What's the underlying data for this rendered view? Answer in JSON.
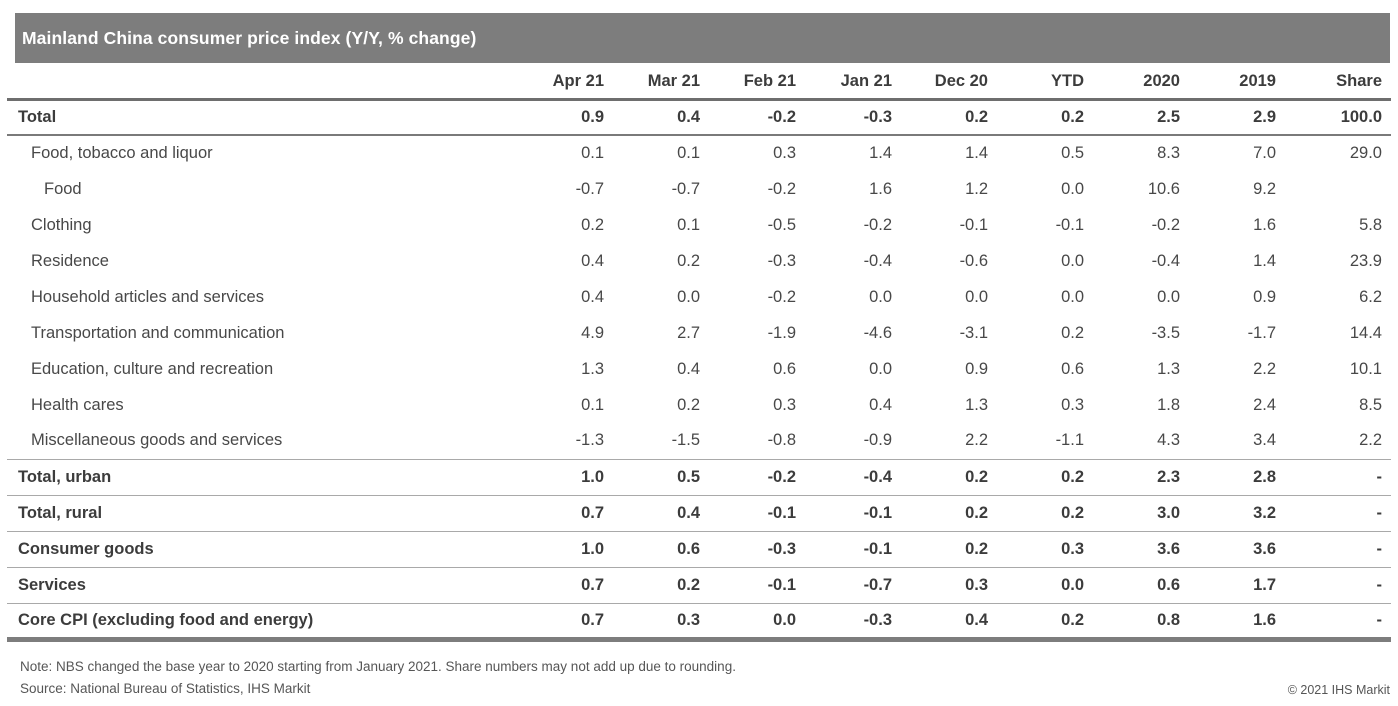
{
  "title": "Mainland China consumer price index (Y/Y, % change)",
  "colors": {
    "title_bar_bg": "#7d7d7d",
    "title_text": "#ffffff",
    "header_text": "#3c3c3c",
    "body_text": "#484848",
    "thin_rule": "#a9a9a9",
    "header_rule": "#6e6e6e",
    "bottom_rule": "#7d7d7d"
  },
  "footer": {
    "note": "Note: NBS changed the base year to 2020 starting from January 2021. Share numbers may not add up due to rounding.",
    "source": "Source: National Bureau of Statistics, IHS Markit",
    "copyright": "© 2021 IHS Markit"
  },
  "chart_data": {
    "type": "table",
    "title": "Mainland China consumer price index (Y/Y, % change)",
    "columns": [
      "Apr 21",
      "Mar 21",
      "Feb 21",
      "Jan 21",
      "Dec 20",
      "YTD",
      "2020",
      "2019",
      "Share"
    ],
    "rows": [
      {
        "label": "Total",
        "indent": 0,
        "bold": true,
        "rule_below": "medium",
        "values": [
          "0.9",
          "0.4",
          "-0.2",
          "-0.3",
          "0.2",
          "0.2",
          "2.5",
          "2.9",
          "100.0"
        ]
      },
      {
        "label": "Food, tobacco and liquor",
        "indent": 1,
        "bold": false,
        "rule_below": null,
        "values": [
          "0.1",
          "0.1",
          "0.3",
          "1.4",
          "1.4",
          "0.5",
          "8.3",
          "7.0",
          "29.0"
        ]
      },
      {
        "label": "Food",
        "indent": 2,
        "bold": false,
        "rule_below": null,
        "values": [
          "-0.7",
          "-0.7",
          "-0.2",
          "1.6",
          "1.2",
          "0.0",
          "10.6",
          "9.2",
          ""
        ]
      },
      {
        "label": "Clothing",
        "indent": 1,
        "bold": false,
        "rule_below": null,
        "values": [
          "0.2",
          "0.1",
          "-0.5",
          "-0.2",
          "-0.1",
          "-0.1",
          "-0.2",
          "1.6",
          "5.8"
        ]
      },
      {
        "label": "Residence",
        "indent": 1,
        "bold": false,
        "rule_below": null,
        "values": [
          "0.4",
          "0.2",
          "-0.3",
          "-0.4",
          "-0.6",
          "0.0",
          "-0.4",
          "1.4",
          "23.9"
        ]
      },
      {
        "label": "Household articles and services",
        "indent": 1,
        "bold": false,
        "rule_below": null,
        "values": [
          "0.4",
          "0.0",
          "-0.2",
          "0.0",
          "0.0",
          "0.0",
          "0.0",
          "0.9",
          "6.2"
        ]
      },
      {
        "label": "Transportation and communication",
        "indent": 1,
        "bold": false,
        "rule_below": null,
        "values": [
          "4.9",
          "2.7",
          "-1.9",
          "-4.6",
          "-3.1",
          "0.2",
          "-3.5",
          "-1.7",
          "14.4"
        ]
      },
      {
        "label": "Education, culture and recreation",
        "indent": 1,
        "bold": false,
        "rule_below": null,
        "values": [
          "1.3",
          "0.4",
          "0.6",
          "0.0",
          "0.9",
          "0.6",
          "1.3",
          "2.2",
          "10.1"
        ]
      },
      {
        "label": "Health cares",
        "indent": 1,
        "bold": false,
        "rule_below": null,
        "values": [
          "0.1",
          "0.2",
          "0.3",
          "0.4",
          "1.3",
          "0.3",
          "1.8",
          "2.4",
          "8.5"
        ]
      },
      {
        "label": "Miscellaneous goods and services",
        "indent": 1,
        "bold": false,
        "rule_below": "thin",
        "values": [
          "-1.3",
          "-1.5",
          "-0.8",
          "-0.9",
          "2.2",
          "-1.1",
          "4.3",
          "3.4",
          "2.2"
        ]
      },
      {
        "label": "Total, urban",
        "indent": 0,
        "bold": true,
        "rule_below": "thin",
        "values": [
          "1.0",
          "0.5",
          "-0.2",
          "-0.4",
          "0.2",
          "0.2",
          "2.3",
          "2.8",
          "-"
        ]
      },
      {
        "label": "Total, rural",
        "indent": 0,
        "bold": true,
        "rule_below": "thin",
        "values": [
          "0.7",
          "0.4",
          "-0.1",
          "-0.1",
          "0.2",
          "0.2",
          "3.0",
          "3.2",
          "-"
        ]
      },
      {
        "label": "Consumer goods",
        "indent": 0,
        "bold": true,
        "rule_below": "thin",
        "values": [
          "1.0",
          "0.6",
          "-0.3",
          "-0.1",
          "0.2",
          "0.3",
          "3.6",
          "3.6",
          "-"
        ]
      },
      {
        "label": "Services",
        "indent": 0,
        "bold": true,
        "rule_below": "thin",
        "values": [
          "0.7",
          "0.2",
          "-0.1",
          "-0.7",
          "0.3",
          "0.0",
          "0.6",
          "1.7",
          "-"
        ]
      },
      {
        "label": "Core CPI (excluding food and energy)",
        "indent": 0,
        "bold": true,
        "rule_below": "thick",
        "values": [
          "0.7",
          "0.3",
          "0.0",
          "-0.3",
          "0.4",
          "0.2",
          "0.8",
          "1.6",
          "-"
        ]
      }
    ]
  }
}
